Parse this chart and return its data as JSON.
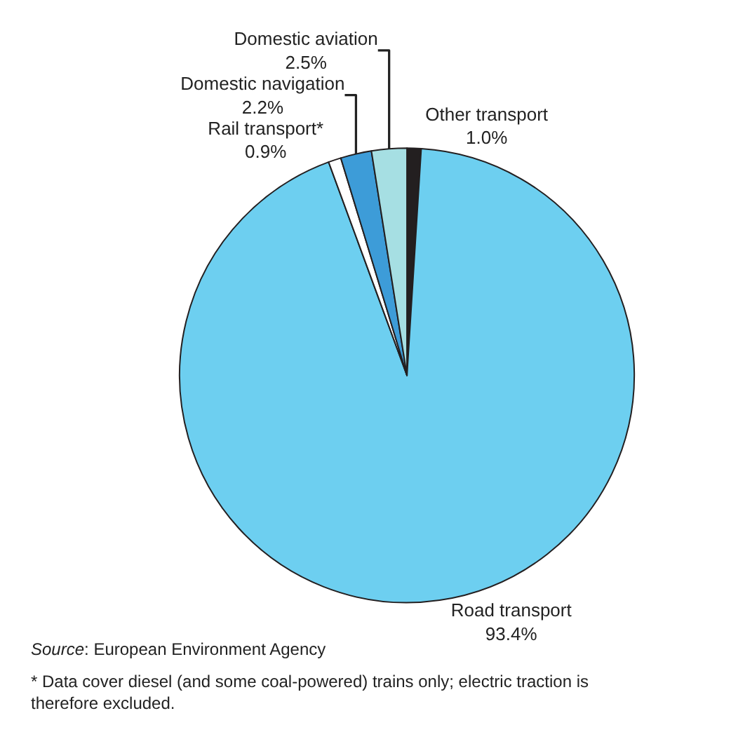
{
  "chart_data": {
    "type": "pie",
    "categories": [
      "Other transport",
      "Road transport",
      "Rail transport*",
      "Domestic navigation",
      "Domestic aviation"
    ],
    "values": [
      1.0,
      93.4,
      0.9,
      2.2,
      2.5
    ],
    "value_labels": [
      "1.0%",
      "93.4%",
      "0.9%",
      "2.2%",
      "2.5%"
    ],
    "colors": [
      "#231f20",
      "#6dcff0",
      "#ffffff",
      "#3d9cd8",
      "#a6dfe3"
    ],
    "legend": false,
    "annotations": [
      "Source: European Environment Agency",
      "* Data cover diesel (and some coal-powered) trains only; electric traction is therefore excluded."
    ]
  }
}
